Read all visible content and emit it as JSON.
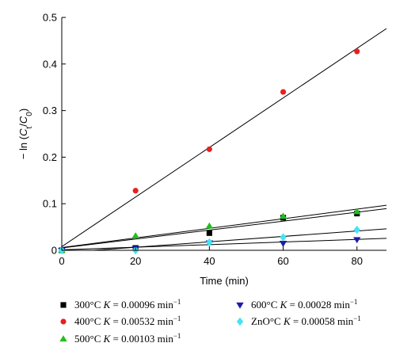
{
  "chart_data": {
    "type": "scatter",
    "xlabel": "Time (min)",
    "ylabel": "− ln (C_t/C_0)",
    "xlim": [
      0,
      88
    ],
    "ylim": [
      0,
      0.5
    ],
    "xticks": [
      0,
      20,
      40,
      60,
      80
    ],
    "yticks": [
      0,
      0.1,
      0.2,
      0.3,
      0.4,
      0.5
    ],
    "grid": false,
    "series": [
      {
        "name": "300°C K = 0.00096 min⁻¹",
        "label_prefix": "300°C",
        "k": "0.00096",
        "marker": "square",
        "color": "#000000",
        "x": [
          0,
          20,
          40,
          60,
          80
        ],
        "y": [
          0,
          0.005,
          0.037,
          0.07,
          0.079
        ],
        "fit": {
          "slope": 0.00096,
          "intercept": 0.005
        }
      },
      {
        "name": "400°C K = 0.00532 min⁻¹",
        "label_prefix": "400°C",
        "k": "0.00532",
        "marker": "circle",
        "color": "#e8201f",
        "x": [
          0,
          20,
          40,
          60,
          80
        ],
        "y": [
          0,
          0.128,
          0.217,
          0.34,
          0.427
        ],
        "fit": {
          "slope": 0.00532,
          "intercept": 0.008
        }
      },
      {
        "name": "500°C K = 0.00103 min⁻¹",
        "label_prefix": "500°C",
        "k": "0.00103",
        "marker": "triangle-up",
        "color": "#1fbf1f",
        "x": [
          0,
          20,
          40,
          60,
          80
        ],
        "y": [
          0,
          0.031,
          0.052,
          0.073,
          0.083
        ],
        "fit": {
          "slope": 0.00103,
          "intercept": 0.006
        }
      },
      {
        "name": "600°C K = 0.00028 min⁻¹",
        "label_prefix": "600°C",
        "k": "0.00028",
        "marker": "triangle-down",
        "color": "#1c1ca8",
        "x": [
          0,
          20,
          40,
          60,
          80
        ],
        "y": [
          0,
          0.004,
          0.016,
          0.015,
          0.023
        ],
        "fit": {
          "slope": 0.00028,
          "intercept": 0.001
        }
      },
      {
        "name": "ZnO°C K = 0.00058 min⁻¹",
        "label_prefix": "ZnO°C",
        "k": "0.00058",
        "marker": "diamond",
        "color": "#44e4f4",
        "x": [
          0,
          20,
          40,
          60,
          80
        ],
        "y": [
          0,
          0.0,
          0.017,
          0.028,
          0.044
        ],
        "fit": {
          "slope": 0.00058,
          "intercept": -0.005
        }
      }
    ],
    "legend": {
      "placement": "bottom",
      "k_symbol": "K",
      "equals": " = ",
      "unit": "min",
      "unit_exponent": "−1"
    }
  }
}
